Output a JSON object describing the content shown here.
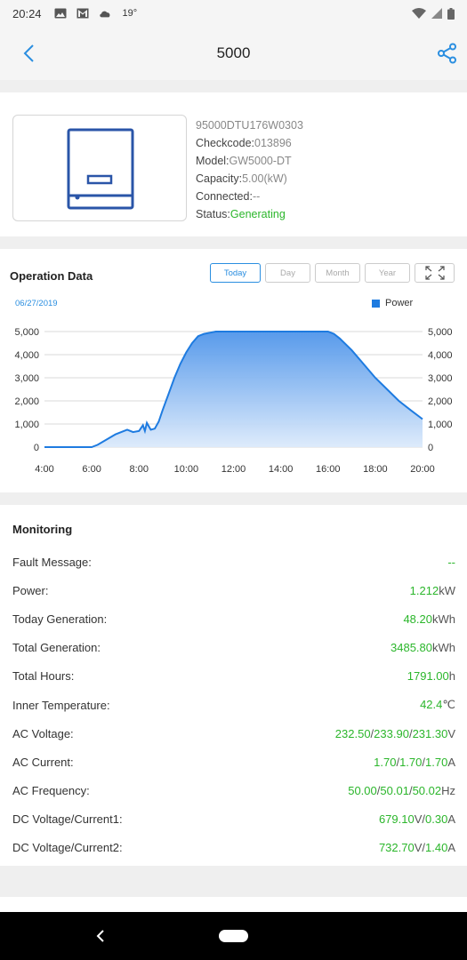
{
  "status_bar": {
    "time": "20:24",
    "temperature": "19°",
    "icons": [
      "image-icon",
      "gmail-icon",
      "cloud-icon",
      "wifi-icon",
      "signal-icon",
      "battery-icon"
    ]
  },
  "app_bar": {
    "title": "5000"
  },
  "device": {
    "serial": "95000DTU176W0303",
    "checkcode_label": "Checkcode:",
    "checkcode": "013896",
    "model_label": "Model:",
    "model": "GW5000-DT",
    "capacity_label": "Capacity:",
    "capacity": "5.00(kW)",
    "connected_label": "Connected:",
    "connected": "--",
    "status_label": "Status:",
    "status": "Generating"
  },
  "operation": {
    "title": "Operation Data",
    "tabs": [
      "Today",
      "Day",
      "Month",
      "Year"
    ],
    "active_tab": "Today",
    "date": "06/27/2019",
    "legend": "Power"
  },
  "chart_data": {
    "type": "area",
    "series": [
      {
        "name": "Power",
        "x": [
          "4:00",
          "5:00",
          "5:30",
          "6:00",
          "6:15",
          "6:30",
          "6:45",
          "7:00",
          "7:15",
          "7:30",
          "7:45",
          "8:00",
          "8:10",
          "8:15",
          "8:20",
          "8:30",
          "8:40",
          "8:50",
          "9:00",
          "9:15",
          "9:30",
          "9:45",
          "10:00",
          "10:15",
          "10:30",
          "10:45",
          "11:00",
          "11:15",
          "11:30",
          "12:00",
          "13:00",
          "14:00",
          "15:00",
          "15:30",
          "16:00",
          "16:15",
          "16:30",
          "17:00",
          "17:30",
          "18:00",
          "18:30",
          "19:00",
          "19:30",
          "20:00"
        ],
        "values": [
          0,
          0,
          0,
          0,
          100,
          250,
          400,
          550,
          650,
          750,
          650,
          700,
          950,
          700,
          1050,
          750,
          800,
          1100,
          1600,
          2300,
          3000,
          3600,
          4100,
          4500,
          4800,
          4900,
          4950,
          5000,
          5000,
          5000,
          5000,
          5000,
          5000,
          5000,
          5000,
          4900,
          4700,
          4200,
          3600,
          3000,
          2500,
          2000,
          1600,
          1212
        ]
      }
    ],
    "x_ticks": [
      "4:00",
      "6:00",
      "8:00",
      "10:00",
      "12:00",
      "14:00",
      "16:00",
      "18:00",
      "20:00"
    ],
    "y_ticks": [
      "0",
      "1,000",
      "2,000",
      "3,000",
      "4,000",
      "5,000"
    ],
    "ylim": [
      0,
      5000
    ],
    "grid": true,
    "legend_position": "top-right",
    "color": "#1e7be0"
  },
  "monitoring": {
    "title": "Monitoring",
    "rows": [
      {
        "label": "Fault Message:",
        "parts": [
          [
            "v",
            "--"
          ]
        ]
      },
      {
        "label": "Power:",
        "parts": [
          [
            "v",
            "1.212"
          ],
          [
            "u",
            "kW"
          ]
        ]
      },
      {
        "label": "Today Generation:",
        "parts": [
          [
            "v",
            "48.20"
          ],
          [
            "u",
            "kWh"
          ]
        ]
      },
      {
        "label": "Total Generation:",
        "parts": [
          [
            "v",
            "3485.80"
          ],
          [
            "u",
            "kWh"
          ]
        ]
      },
      {
        "label": "Total Hours:",
        "parts": [
          [
            "v",
            "1791.00"
          ],
          [
            "u",
            "h"
          ]
        ]
      },
      {
        "label": "Inner Temperature:",
        "parts": [
          [
            "v",
            "42.4"
          ],
          [
            "u",
            "℃"
          ]
        ]
      },
      {
        "label": "AC Voltage:",
        "parts": [
          [
            "v",
            "232.50"
          ],
          [
            "u",
            "/"
          ],
          [
            "v",
            "233.90"
          ],
          [
            "u",
            "/"
          ],
          [
            "v",
            "231.30"
          ],
          [
            "u",
            "V"
          ]
        ]
      },
      {
        "label": "AC Current:",
        "parts": [
          [
            "v",
            "1.70"
          ],
          [
            "u",
            "/"
          ],
          [
            "v",
            "1.70"
          ],
          [
            "u",
            "/"
          ],
          [
            "v",
            "1.70"
          ],
          [
            "u",
            "A"
          ]
        ]
      },
      {
        "label": "AC Frequency:",
        "parts": [
          [
            "v",
            "50.00"
          ],
          [
            "u",
            "/"
          ],
          [
            "v",
            "50.01"
          ],
          [
            "u",
            "/"
          ],
          [
            "v",
            "50.02"
          ],
          [
            "u",
            "Hz"
          ]
        ]
      },
      {
        "label": "DC Voltage/Current1:",
        "parts": [
          [
            "v",
            "679.10"
          ],
          [
            "u",
            "V/"
          ],
          [
            "v",
            "0.30"
          ],
          [
            "u",
            "A"
          ]
        ]
      },
      {
        "label": "DC Voltage/Current2:",
        "parts": [
          [
            "v",
            "732.70"
          ],
          [
            "u",
            "V/"
          ],
          [
            "v",
            "1.40"
          ],
          [
            "u",
            "A"
          ]
        ]
      }
    ]
  }
}
